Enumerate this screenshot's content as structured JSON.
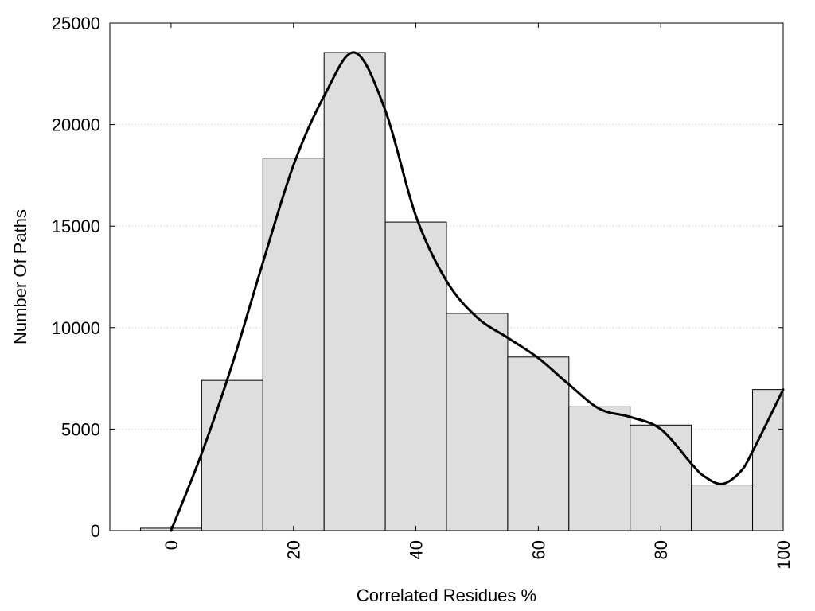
{
  "chart_data": {
    "type": "bar",
    "subtype": "histogram-with-density-curve",
    "title": "",
    "xlabel": "Correlated Residues %",
    "ylabel": "Number Of Paths",
    "xlim": [
      -10,
      100
    ],
    "ylim": [
      0,
      25000
    ],
    "x_ticks": [
      0,
      20,
      40,
      60,
      80,
      100
    ],
    "y_ticks": [
      0,
      5000,
      10000,
      15000,
      20000,
      25000
    ],
    "x_tick_rotation": -90,
    "grid": "horizontal-dotted",
    "bin_width": 10,
    "bins": [
      {
        "center": 0,
        "value": 120
      },
      {
        "center": 10,
        "value": 7400
      },
      {
        "center": 20,
        "value": 18350
      },
      {
        "center": 30,
        "value": 23550
      },
      {
        "center": 40,
        "value": 15200
      },
      {
        "center": 50,
        "value": 10700
      },
      {
        "center": 60,
        "value": 8550
      },
      {
        "center": 70,
        "value": 6100
      },
      {
        "center": 80,
        "value": 5200
      },
      {
        "center": 90,
        "value": 2250
      },
      {
        "center": 100,
        "value": 6950
      }
    ],
    "curve": {
      "x": [
        0,
        5,
        10,
        15,
        20,
        25,
        30,
        35,
        40,
        45,
        50,
        55,
        60,
        65,
        70,
        75,
        80,
        85,
        87,
        90,
        93,
        95,
        100
      ],
      "y": [
        0,
        3800,
        8200,
        13200,
        18000,
        21400,
        23550,
        20700,
        15500,
        12300,
        10500,
        9500,
        8500,
        7200,
        6000,
        5600,
        5000,
        3300,
        2700,
        2300,
        2900,
        3900,
        6950
      ]
    }
  }
}
